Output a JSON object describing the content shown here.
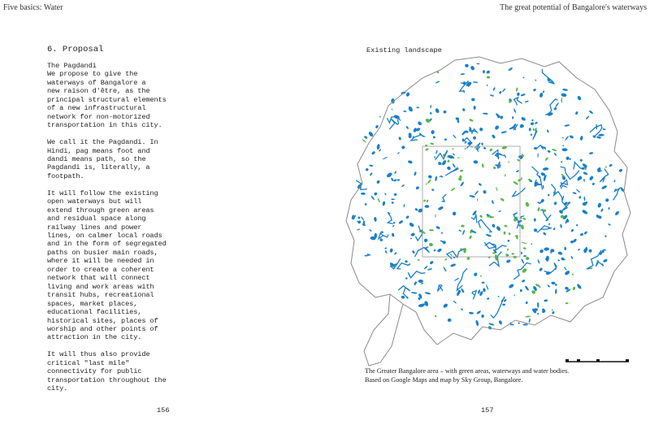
{
  "header": {
    "left": "Five basics: Water",
    "right": "The great potential of Bangalore's waterways"
  },
  "left_page": {
    "heading": "6. Proposal",
    "paragraphs": [
      [
        "The Pagdandi",
        "We propose to give the",
        "waterways of Bangalore a",
        "new raison d'être, as the",
        "principal structural elements",
        "of a new infrastructural",
        "network for non-motorized",
        "transportation in this city."
      ],
      [
        "We call it the Pagdandi. In",
        "Hindi, pag means foot and",
        "dandi means path, so the",
        "Pagdandi is, literally, a",
        "footpath."
      ],
      [
        "It will follow the existing",
        "open waterways but will",
        "extend through green areas",
        "and residual space along",
        "railway lines and power",
        "lines, on calmer local roads",
        "and in the form of segregated",
        "paths on busier main roads,",
        "where it will be needed in",
        "order to create a coherent",
        "network that will connect",
        "living and work areas with",
        "transit hubs, recreational",
        "spaces, market places,",
        "educational facilities,",
        "historical sites, places of",
        "worship and other points of",
        "attraction in the city."
      ],
      [
        "It will thus also provide",
        "critical \"last mile\"",
        "connectivity for public",
        "transportation throughout the",
        "city."
      ]
    ],
    "page_number": "156"
  },
  "right_page": {
    "subtitle": "Existing landscape",
    "caption_lines": [
      "The Greater Bangalore area – with green areas, waterways and water bodies.",
      "Based on Google Maps and map by Sky Group, Bangalore."
    ],
    "page_number": "157",
    "map_colors": {
      "water": "#1a7fc9",
      "green": "#58b947",
      "outline": "#8a8a8a"
    }
  }
}
